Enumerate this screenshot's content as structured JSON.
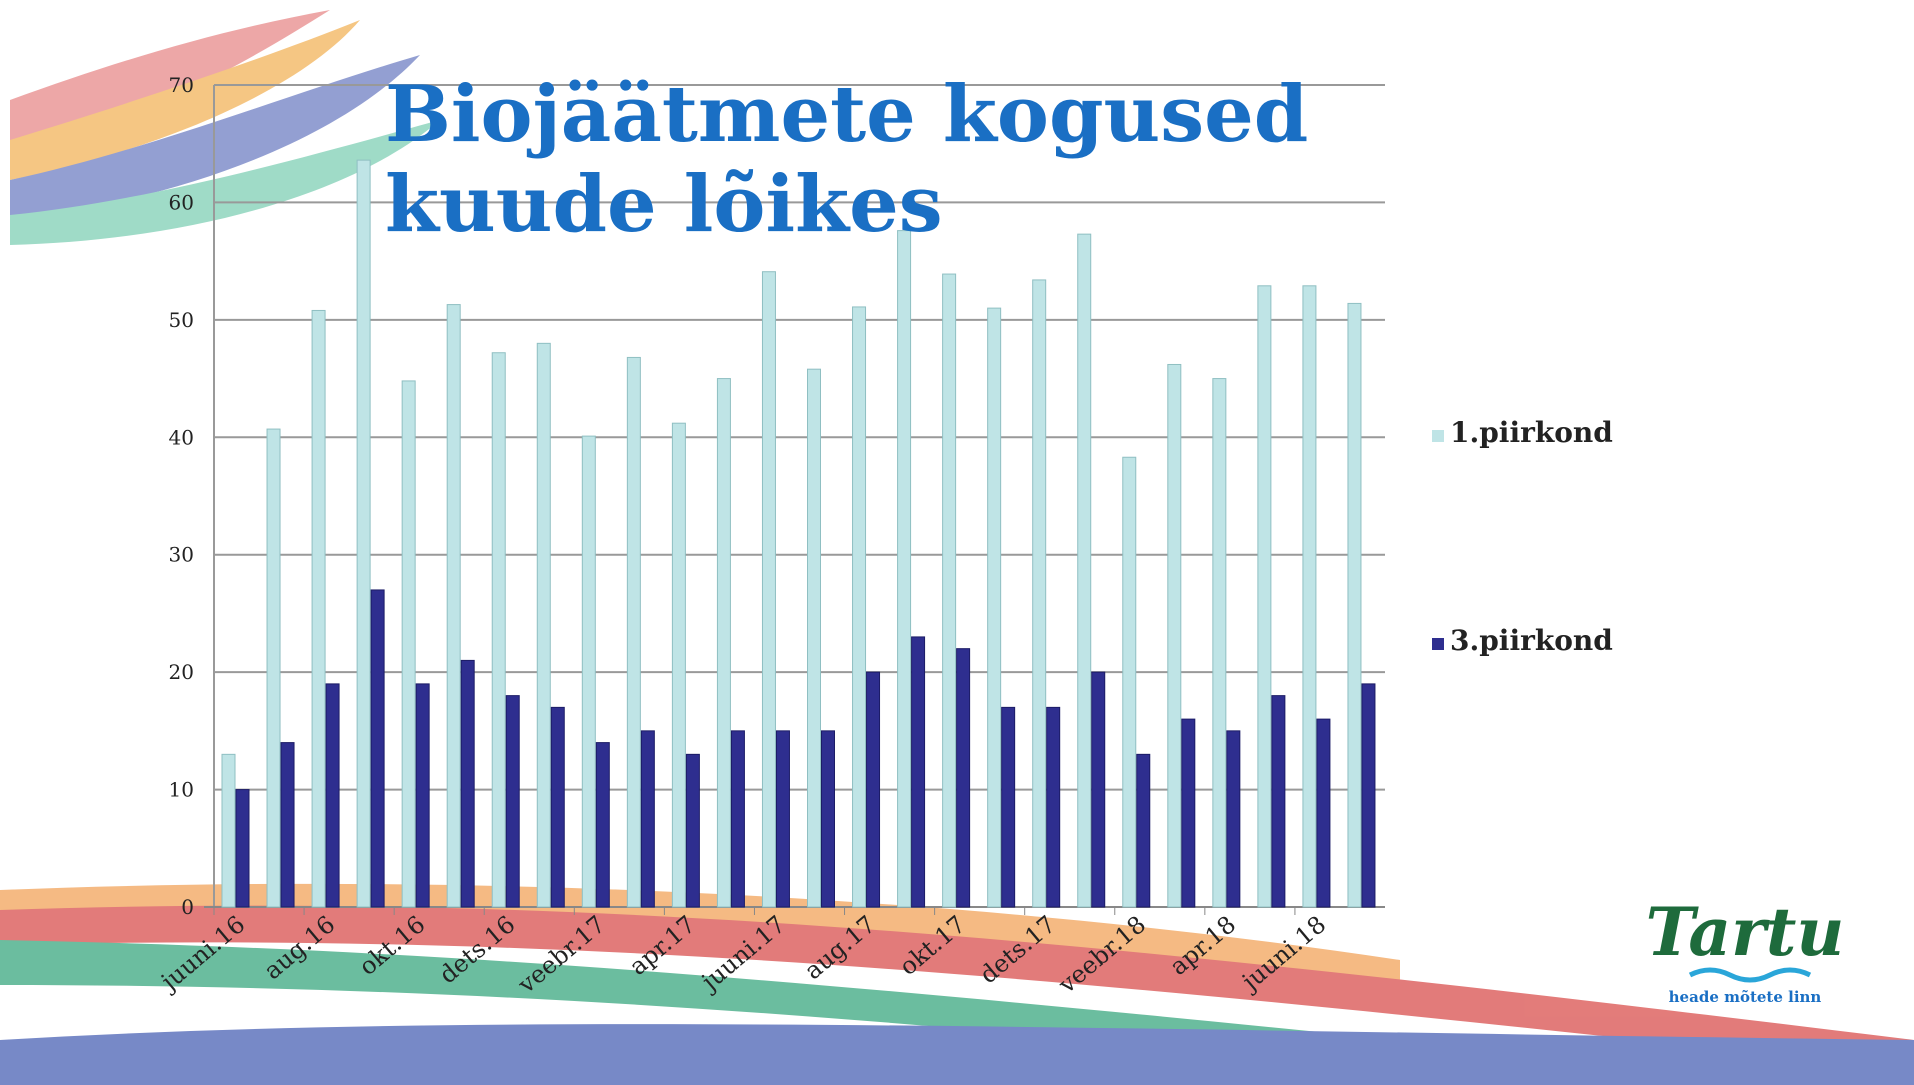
{
  "chart_data": {
    "type": "bar",
    "title": "Biojäätmete kogused kuude lõikes",
    "categories": [
      "juuni.16",
      null,
      "aug.16",
      null,
      "okt.16",
      null,
      "dets.16",
      null,
      "veebr.17",
      null,
      "apr.17",
      null,
      "juuni.17",
      null,
      "aug.17",
      null,
      "okt.17",
      null,
      "dets.17",
      null,
      "veebr.18",
      null,
      "apr.18",
      null,
      "juuni.18",
      null
    ],
    "series": [
      {
        "name": "1.piirkond",
        "color": "#bfe4e6",
        "values": [
          13,
          40.7,
          50.8,
          63.6,
          44.8,
          51.3,
          47.2,
          48,
          40.1,
          46.8,
          41.2,
          45,
          54.1,
          45.8,
          51.1,
          57.6,
          53.9,
          51,
          53.4,
          57.3,
          38.3,
          46.2,
          45,
          52.9,
          52.9,
          51.4
        ]
      },
      {
        "name": "3.piirkond",
        "color": "#2e2e8f",
        "values": [
          10,
          14,
          19,
          27,
          19,
          21,
          18,
          17,
          14,
          15,
          13,
          15,
          15,
          15,
          20,
          23,
          22,
          17,
          17,
          20,
          13,
          16,
          15,
          18,
          16,
          19
        ]
      }
    ],
    "ylim": [
      0,
      70
    ],
    "yticks": [
      0,
      10,
      20,
      30,
      40,
      50,
      60,
      70
    ],
    "grid": true,
    "legend": "right"
  },
  "logo": {
    "name": "Tartu",
    "tagline": "heade mõtete linn"
  }
}
